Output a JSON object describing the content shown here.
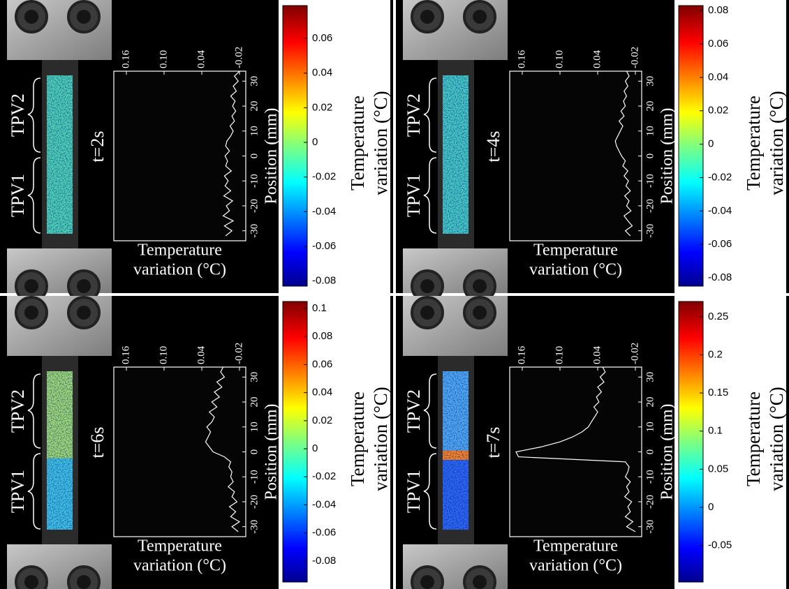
{
  "chart_data": [
    {
      "type": "line",
      "title": "t=2s",
      "annotations": [
        "TPV1",
        "TPV2"
      ],
      "xlabel": [
        "Temperature",
        "variation (°C)"
      ],
      "ylabel": "Position (mm)",
      "x": [
        -32,
        -30,
        -28,
        -26,
        -24,
        -22,
        -20,
        -18,
        -16,
        -14,
        -12,
        -10,
        -8,
        -6,
        -4,
        -2,
        0,
        2,
        4,
        6,
        8,
        10,
        12,
        14,
        16,
        18,
        20,
        22,
        24,
        26,
        28,
        30,
        32,
        34
      ],
      "values": [
        0.002,
        -0.008,
        0.004,
        -0.01,
        0.006,
        -0.004,
        0.001,
        -0.009,
        0.005,
        -0.006,
        0.003,
        -0.002,
        0.004,
        -0.007,
        0.002,
        -0.001,
        0.003,
        -0.004,
        0.002,
        0.0,
        -0.006,
        -0.01,
        -0.005,
        -0.012,
        -0.008,
        -0.014,
        -0.009,
        -0.013,
        -0.006,
        -0.015,
        -0.01,
        -0.018,
        -0.012,
        -0.02
      ],
      "color": "#ffffff",
      "xlim": [
        -34,
        34
      ],
      "xticks": [
        -30,
        -20,
        -10,
        0,
        10,
        20,
        30
      ],
      "ylim": [
        0.18,
        -0.03
      ],
      "yticks": [
        0.16,
        {
          "value": 0.1,
          "label": "0.10"
        },
        0.04,
        -0.02
      ],
      "colorbar": {
        "label": [
          "Temperature",
          "variation (°C)"
        ],
        "lim": [
          -0.083,
          0.079
        ],
        "ticks": [
          -0.08,
          -0.06,
          -0.04,
          -0.02,
          0,
          0.02,
          0.04,
          0.06
        ]
      }
    },
    {
      "type": "line",
      "title": "t=4s",
      "annotations": [
        "TPV1",
        "TPV2"
      ],
      "xlabel": [
        "Temperature",
        "variation (°C)"
      ],
      "ylabel": "Position (mm)",
      "x": [
        -32,
        -30,
        -28,
        -26,
        -24,
        -22,
        -20,
        -18,
        -16,
        -14,
        -12,
        -10,
        -8,
        -6,
        -4,
        -2,
        0,
        2,
        4,
        6,
        8,
        10,
        12,
        14,
        16,
        18,
        20,
        22,
        24,
        26,
        28,
        30,
        32,
        34
      ],
      "values": [
        -0.012,
        -0.004,
        -0.015,
        -0.008,
        -0.002,
        -0.013,
        -0.006,
        -0.01,
        -0.003,
        -0.012,
        -0.005,
        -0.009,
        -0.002,
        -0.008,
        0.0,
        -0.004,
        0.002,
        0.006,
        0.01,
        0.012,
        0.008,
        0.004,
        0.0,
        0.006,
        -0.002,
        0.003,
        -0.004,
        -0.001,
        -0.006,
        -0.002,
        -0.008,
        -0.004,
        -0.01,
        -0.006
      ],
      "color": "#ffffff",
      "xlim": [
        -34,
        34
      ],
      "xticks": [
        -30,
        -20,
        -10,
        0,
        10,
        20,
        30
      ],
      "ylim": [
        0.18,
        -0.03
      ],
      "yticks": [
        0.16,
        {
          "value": 0.1,
          "label": "0.10"
        },
        0.04,
        -0.02
      ],
      "colorbar": {
        "label": [
          "Temperature",
          "variation (°C)"
        ],
        "lim": [
          -0.085,
          0.083
        ],
        "ticks": [
          -0.08,
          -0.06,
          -0.04,
          -0.02,
          0,
          0.02,
          0.04,
          0.06,
          0.08
        ]
      }
    },
    {
      "type": "line",
      "title": "t=6s",
      "annotations": [
        "TPV1",
        "TPV2"
      ],
      "xlabel": [
        "Temperature",
        "variation (°C)"
      ],
      "ylabel": "Position (mm)",
      "x": [
        -32,
        -30,
        -28,
        -26,
        -24,
        -22,
        -20,
        -18,
        -16,
        -14,
        -12,
        -10,
        -8,
        -6,
        -4,
        -2,
        0,
        2,
        4,
        6,
        8,
        10,
        12,
        14,
        16,
        18,
        20,
        22,
        24,
        26,
        28,
        30,
        32,
        34
      ],
      "values": [
        -0.018,
        -0.008,
        -0.02,
        -0.006,
        -0.014,
        -0.004,
        -0.016,
        -0.008,
        -0.012,
        -0.002,
        -0.01,
        -0.006,
        -0.008,
        -0.003,
        -0.006,
        0.004,
        0.022,
        0.028,
        0.034,
        0.03,
        0.026,
        0.032,
        0.024,
        0.02,
        0.028,
        0.016,
        0.024,
        0.012,
        0.02,
        0.008,
        0.016,
        0.004,
        0.01,
        0.006
      ],
      "color": "#ffffff",
      "xlim": [
        -34,
        34
      ],
      "xticks": [
        -30,
        -20,
        -10,
        0,
        10,
        20,
        30
      ],
      "ylim": [
        0.18,
        -0.03
      ],
      "yticks": [
        0.16,
        {
          "value": 0.1,
          "label": "0.10"
        },
        0.04,
        -0.02
      ],
      "colorbar": {
        "label": [
          "Temperature",
          "variation (°C)"
        ],
        "lim": [
          -0.095,
          0.105
        ],
        "ticks": [
          -0.08,
          -0.06,
          -0.04,
          -0.02,
          0,
          0.02,
          0.04,
          0.06,
          0.08,
          0.1
        ]
      }
    },
    {
      "type": "line",
      "title": "t=7s",
      "annotations": [
        "TPV1",
        "TPV2"
      ],
      "xlabel": [
        "Temperature",
        "variation (°C)"
      ],
      "ylabel": "Position (mm)",
      "x": [
        -32,
        -30,
        -28,
        -26,
        -24,
        -22,
        -20,
        -18,
        -16,
        -14,
        -12,
        -10,
        -8,
        -6,
        -4,
        -2,
        0,
        2,
        4,
        6,
        8,
        10,
        12,
        14,
        16,
        18,
        20,
        22,
        24,
        26,
        28,
        30,
        32,
        34
      ],
      "values": [
        -0.02,
        -0.006,
        -0.016,
        -0.004,
        -0.012,
        -0.008,
        -0.014,
        -0.003,
        -0.01,
        -0.006,
        -0.012,
        -0.004,
        -0.008,
        -0.01,
        -0.004,
        0.166,
        0.17,
        0.13,
        0.1,
        0.08,
        0.065,
        0.055,
        0.05,
        0.045,
        0.04,
        0.046,
        0.038,
        0.042,
        0.034,
        0.04,
        0.03,
        0.036,
        0.028,
        0.032
      ],
      "color": "#ffffff",
      "xlim": [
        -34,
        34
      ],
      "xticks": [
        -30,
        -20,
        -10,
        0,
        10,
        20,
        30
      ],
      "ylim": [
        0.18,
        -0.03
      ],
      "yticks": [
        0.16,
        {
          "value": 0.1,
          "label": "0.10"
        },
        0.04,
        -0.02
      ],
      "colorbar": {
        "label": [
          "Temperature",
          "variation (°C)"
        ],
        "lim": [
          -0.098,
          0.27
        ],
        "ticks": [
          -0.05,
          0,
          0.05,
          0.1,
          0.15,
          0.2,
          0.25
        ]
      }
    }
  ]
}
